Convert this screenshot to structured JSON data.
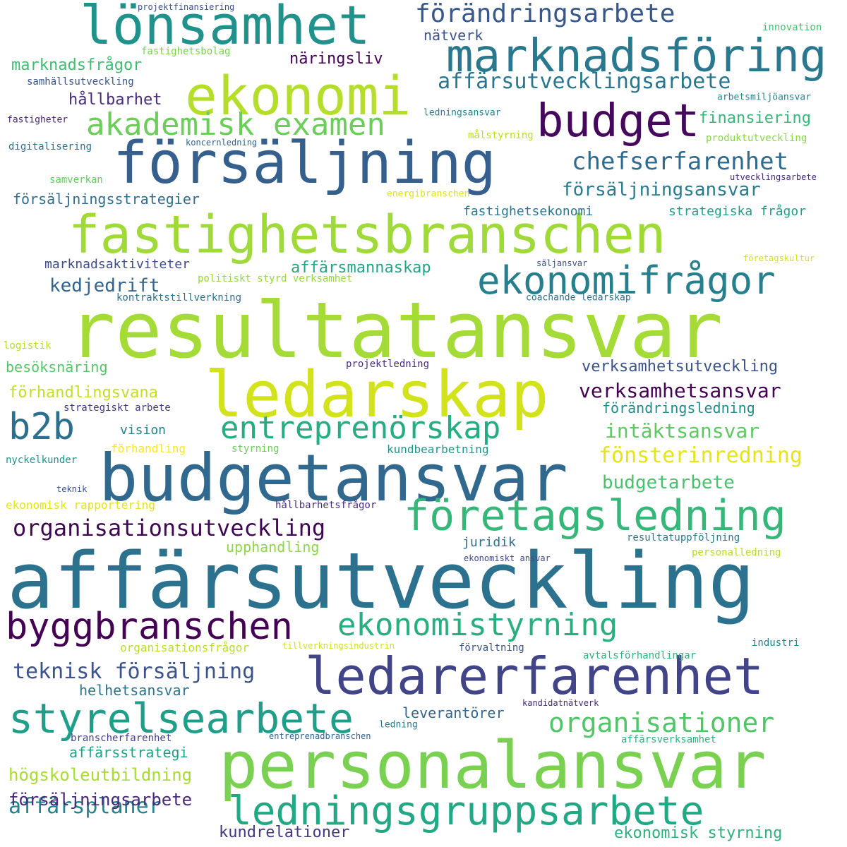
{
  "words": [
    {
      "text": "resultatansvar",
      "color": "#a5db36"
    },
    {
      "text": "affärsutveckling",
      "color": "#2c728e"
    },
    {
      "text": "budgetansvar",
      "color": "#31688e"
    },
    {
      "text": "personalansvar",
      "color": "#7ad151"
    },
    {
      "text": "fastighetsbranschen",
      "color": "#a0da39"
    },
    {
      "text": "försäljning",
      "color": "#355f8d"
    },
    {
      "text": "lönsamhet",
      "color": "#21918c"
    },
    {
      "text": "ledarskap",
      "color": "#d2e21b"
    },
    {
      "text": "ekonomi",
      "color": "#b5de2b"
    },
    {
      "text": "marknadsföring",
      "color": "#2a788e"
    },
    {
      "text": "ledarerfarenhet",
      "color": "#414487"
    },
    {
      "text": "ledningsgruppsarbete",
      "color": "#22a884"
    },
    {
      "text": "företagsledning",
      "color": "#35b779"
    },
    {
      "text": "styrelsearbete",
      "color": "#1f9e89"
    },
    {
      "text": "byggbranschen",
      "color": "#440154"
    },
    {
      "text": "ekonomistyrning",
      "color": "#29af7f"
    },
    {
      "text": "budget",
      "color": "#46085c"
    },
    {
      "text": "akademisk examen",
      "color": "#6ccd5a"
    },
    {
      "text": "ekonomifrågor",
      "color": "#277f8e"
    },
    {
      "text": "b2b",
      "color": "#2d708e"
    },
    {
      "text": "entreprenörskap",
      "color": "#25ac82"
    },
    {
      "text": "organisationer",
      "color": "#52c569"
    },
    {
      "text": "förändringsarbete",
      "color": "#38588c"
    },
    {
      "text": "affärsutvecklingsarbete",
      "color": "#2a768e"
    },
    {
      "text": "organisationsutveckling",
      "color": "#3e0751"
    },
    {
      "text": "chefserfarenhet",
      "color": "#2f6b8e"
    },
    {
      "text": "teknisk försäljning",
      "color": "#3b528b"
    },
    {
      "text": "försäljningsansvar",
      "color": "#287c8e"
    },
    {
      "text": "fönsterinredning",
      "color": "#e5e419"
    },
    {
      "text": "verksamhetsansvar",
      "color": "#440154"
    },
    {
      "text": "intäktsansvar",
      "color": "#5ec962"
    },
    {
      "text": "budgetarbete",
      "color": "#4ac16d"
    },
    {
      "text": "kedjedrift",
      "color": "#33638d"
    },
    {
      "text": "affärsplaner",
      "color": "#25838e"
    },
    {
      "text": "högskoleutbildning",
      "color": "#a8db34"
    },
    {
      "text": "försäljningsarbete",
      "color": "#482878"
    },
    {
      "text": "kundrelationer",
      "color": "#453781"
    },
    {
      "text": "ekonomisk styrning",
      "color": "#2db27d"
    },
    {
      "text": "näringsliv",
      "color": "#440154"
    },
    {
      "text": "marknadsfrågor",
      "color": "#40bd72"
    },
    {
      "text": "hållbarhet",
      "color": "#472c7a"
    },
    {
      "text": "finansiering",
      "color": "#37b878"
    },
    {
      "text": "verksamhetsutveckling",
      "color": "#3a538b"
    },
    {
      "text": "förändringsledning",
      "color": "#228c8d"
    },
    {
      "text": "förhandlingsvana",
      "color": "#c0df25"
    },
    {
      "text": "besöksnäring",
      "color": "#54c568"
    },
    {
      "text": "affärsmannaskap",
      "color": "#21a685"
    },
    {
      "text": "försäljningsstrategier",
      "color": "#2e6e8e"
    },
    {
      "text": "leverantörer",
      "color": "#31668e"
    },
    {
      "text": "helhetsansvar",
      "color": "#2c738e"
    },
    {
      "text": "affärsstrategi",
      "color": "#1fa088"
    },
    {
      "text": "upphandling",
      "color": "#8ed645"
    },
    {
      "text": "marknadsaktiviteter",
      "color": "#3e4c8a"
    },
    {
      "text": "strategiska frågor",
      "color": "#1f9f88"
    },
    {
      "text": "fastighetsekonomi",
      "color": "#2a788e"
    },
    {
      "text": "juridik",
      "color": "#2d708e"
    },
    {
      "text": "nätverk",
      "color": "#3b528b"
    },
    {
      "text": "vision",
      "color": "#26828e"
    },
    {
      "text": "kundbearbetning",
      "color": "#1f958b"
    },
    {
      "text": "innovation",
      "color": "#48c16e"
    },
    {
      "text": "projektfinansiering",
      "color": "#3b528b"
    },
    {
      "text": "fastighetsbolag",
      "color": "#7ad151"
    },
    {
      "text": "samhällsutveckling",
      "color": "#39568c"
    },
    {
      "text": "arbetsmiljöansvar",
      "color": "#26828e"
    },
    {
      "text": "ledningsansvar",
      "color": "#26828e"
    },
    {
      "text": "fastigheter",
      "color": "#482475"
    },
    {
      "text": "målstyrning",
      "color": "#b8de29"
    },
    {
      "text": "produktutveckling",
      "color": "#86d549"
    },
    {
      "text": "digitalisering",
      "color": "#2e6e8e"
    },
    {
      "text": "koncernledning",
      "color": "#33638d"
    },
    {
      "text": "samverkan",
      "color": "#63cb5f"
    },
    {
      "text": "utvecklingsarbete",
      "color": "#482878"
    },
    {
      "text": "energibranschen",
      "color": "#dde318"
    },
    {
      "text": "företagskultur",
      "color": "#d8e219"
    },
    {
      "text": "säljansvar",
      "color": "#3b528b"
    },
    {
      "text": "politiskt styrd verksamhet",
      "color": "#95d840"
    },
    {
      "text": "kontraktstillverkning",
      "color": "#2d708e"
    },
    {
      "text": "coachande ledarskap",
      "color": "#2c728e"
    },
    {
      "text": "logistik",
      "color": "#b5de2b"
    },
    {
      "text": "projektledning",
      "color": "#472d7b"
    },
    {
      "text": "strategiskt arbete",
      "color": "#453882"
    },
    {
      "text": "förhandling",
      "color": "#fde725"
    },
    {
      "text": "styrning",
      "color": "#6ece58"
    },
    {
      "text": "nyckelkunder",
      "color": "#20928c"
    },
    {
      "text": "teknik",
      "color": "#3b528b"
    },
    {
      "text": "ekonomisk rapportering",
      "color": "#e2e418"
    },
    {
      "text": "hållbarhetsfrågor",
      "color": "#472f7d"
    },
    {
      "text": "resultatuppföljning",
      "color": "#2a788e"
    },
    {
      "text": "ekonomiskt ansvar",
      "color": "#3e4a89"
    },
    {
      "text": "personalledning",
      "color": "#b2dd2d"
    },
    {
      "text": "organisationsfrågor",
      "color": "#b8de29"
    },
    {
      "text": "tillverkningsindustrin",
      "color": "#d0e11c"
    },
    {
      "text": "förvaltning",
      "color": "#3b528b"
    },
    {
      "text": "industri",
      "color": "#26828e"
    },
    {
      "text": "avtalsförhandlingar",
      "color": "#2db27d"
    },
    {
      "text": "kandidatnätverk",
      "color": "#482878"
    },
    {
      "text": "ledning",
      "color": "#2a788e"
    },
    {
      "text": "branscherfarenhet",
      "color": "#424086"
    },
    {
      "text": "entreprenadbranschen",
      "color": "#33638d"
    },
    {
      "text": "affärsverksamhet",
      "color": "#2db27d"
    }
  ]
}
